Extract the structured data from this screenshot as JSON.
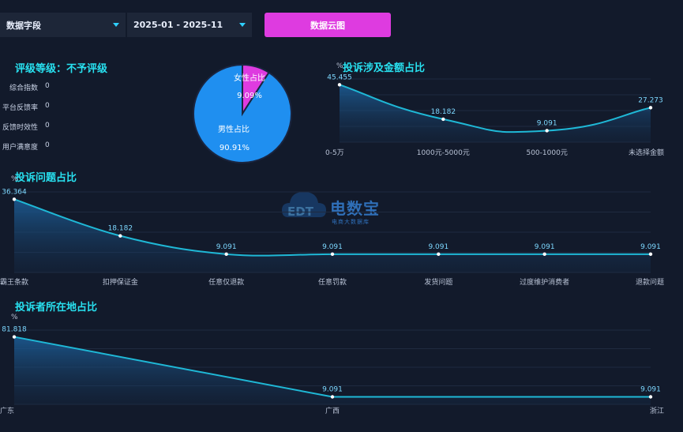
{
  "toolbar": {
    "field_dropdown": "数据字段",
    "date_range": "2025-01 - 2025-11",
    "cloud_button": "数据云图"
  },
  "rating": {
    "title": "评级等级：不予评级",
    "metrics": [
      {
        "label": "综合指数",
        "value": "0"
      },
      {
        "label": "平台反馈率",
        "value": "0"
      },
      {
        "label": "反馈时效性",
        "value": "0"
      },
      {
        "label": "用户满意度",
        "value": "0"
      }
    ]
  },
  "gender_pie": {
    "female_label": "女性占比",
    "female_value": "9.09%",
    "male_label": "男性占比",
    "male_value": "90.91%"
  },
  "watermark": {
    "brand": "电数宝",
    "sub": "电商大数据库",
    "logo_text": "EDT"
  },
  "colors": {
    "accent_cyan": "#28e1f0",
    "line": "#1fb8d6",
    "pie_female": "#de3be0",
    "pie_male": "#1f8ff0",
    "button": "#de3be0",
    "background": "#121a2b"
  },
  "chart_data": [
    {
      "type": "pie",
      "categories": [
        "女性占比",
        "男性占比"
      ],
      "values": [
        9.09,
        90.91
      ]
    },
    {
      "type": "area",
      "title": "投诉涉及金额占比",
      "ylabel": "%",
      "categories": [
        "0-5万",
        "1000元-5000元",
        "500-1000元",
        "未选择金额"
      ],
      "values": [
        45.455,
        18.182,
        9.091,
        27.273
      ],
      "value_labels": [
        "45.455",
        "18.182",
        "9.091",
        "27.273"
      ],
      "ylim": [
        0,
        50
      ]
    },
    {
      "type": "area",
      "title": "投诉问题占比",
      "ylabel": "%",
      "categories": [
        "霸王条款",
        "扣押保证金",
        "任意仅退款",
        "任意罚款",
        "发货问题",
        "过度维护消费者",
        "退款问题"
      ],
      "values": [
        36.364,
        18.182,
        9.091,
        9.091,
        9.091,
        9.091,
        9.091
      ],
      "value_labels": [
        "36.364",
        "18.182",
        "9.091",
        "9.091",
        "9.091",
        "9.091",
        "9.091"
      ],
      "ylim": [
        0,
        40
      ]
    },
    {
      "type": "area",
      "title": "投诉者所在地占比",
      "ylabel": "%",
      "categories": [
        "广东",
        "广西",
        "浙江"
      ],
      "values": [
        81.818,
        9.091,
        9.091
      ],
      "value_labels": [
        "81.818",
        "9.091",
        "9.091"
      ],
      "ylim": [
        0,
        90
      ]
    }
  ]
}
